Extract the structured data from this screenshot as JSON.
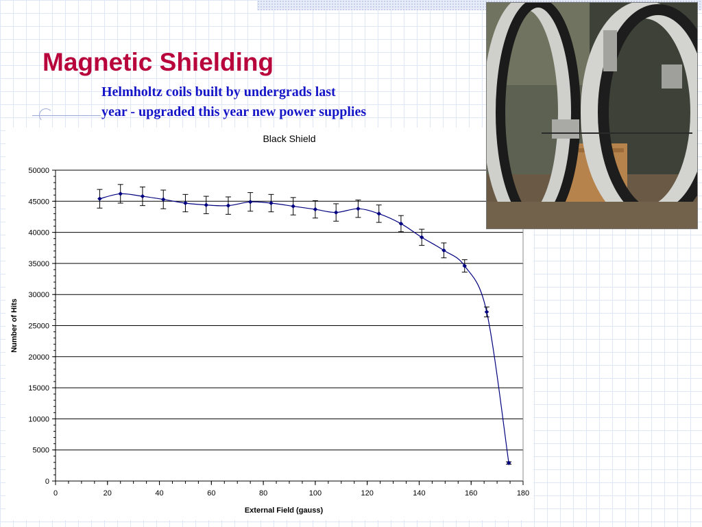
{
  "slide": {
    "title": "Magnetic Shielding",
    "subtitle_line1": "Helmholtz coils built by undergrads last",
    "subtitle_line2": "year - upgraded this year new power supplies"
  },
  "photo": {
    "description_icon": "helmholtz-coils-photo"
  },
  "colors": {
    "title": "#b8063c",
    "subtitle": "#1515c8",
    "series": "#000080"
  },
  "chart_data": {
    "type": "line",
    "title": "Black Shield",
    "xlabel": "External Field (gauss)",
    "ylabel": "Number of Hits",
    "xlim": [
      0,
      180
    ],
    "ylim": [
      0,
      50000
    ],
    "x_ticks": [
      0,
      20,
      40,
      60,
      80,
      100,
      120,
      140,
      160,
      180
    ],
    "y_ticks": [
      0,
      5000,
      10000,
      15000,
      20000,
      25000,
      30000,
      35000,
      40000,
      45000,
      50000
    ],
    "grid": "horizontal",
    "legend": "none",
    "series": [
      {
        "marker": "diamond",
        "smooth": true,
        "x": [
          17,
          25,
          33.5,
          41.5,
          50,
          58,
          66.5,
          75,
          83,
          91.5,
          100,
          108,
          116.5,
          124.5,
          133,
          141,
          149.5,
          157.5,
          166,
          174.5
        ],
        "y": [
          45400,
          46200,
          45800,
          45300,
          44700,
          44400,
          44300,
          44900,
          44700,
          44200,
          43700,
          43200,
          43800,
          43000,
          41400,
          39200,
          37100,
          34600,
          27200,
          2900
        ],
        "error": [
          1500,
          1500,
          1500,
          1500,
          1400,
          1400,
          1400,
          1500,
          1400,
          1400,
          1400,
          1400,
          1400,
          1400,
          1300,
          1300,
          1200,
          1000,
          800,
          200
        ]
      }
    ]
  }
}
